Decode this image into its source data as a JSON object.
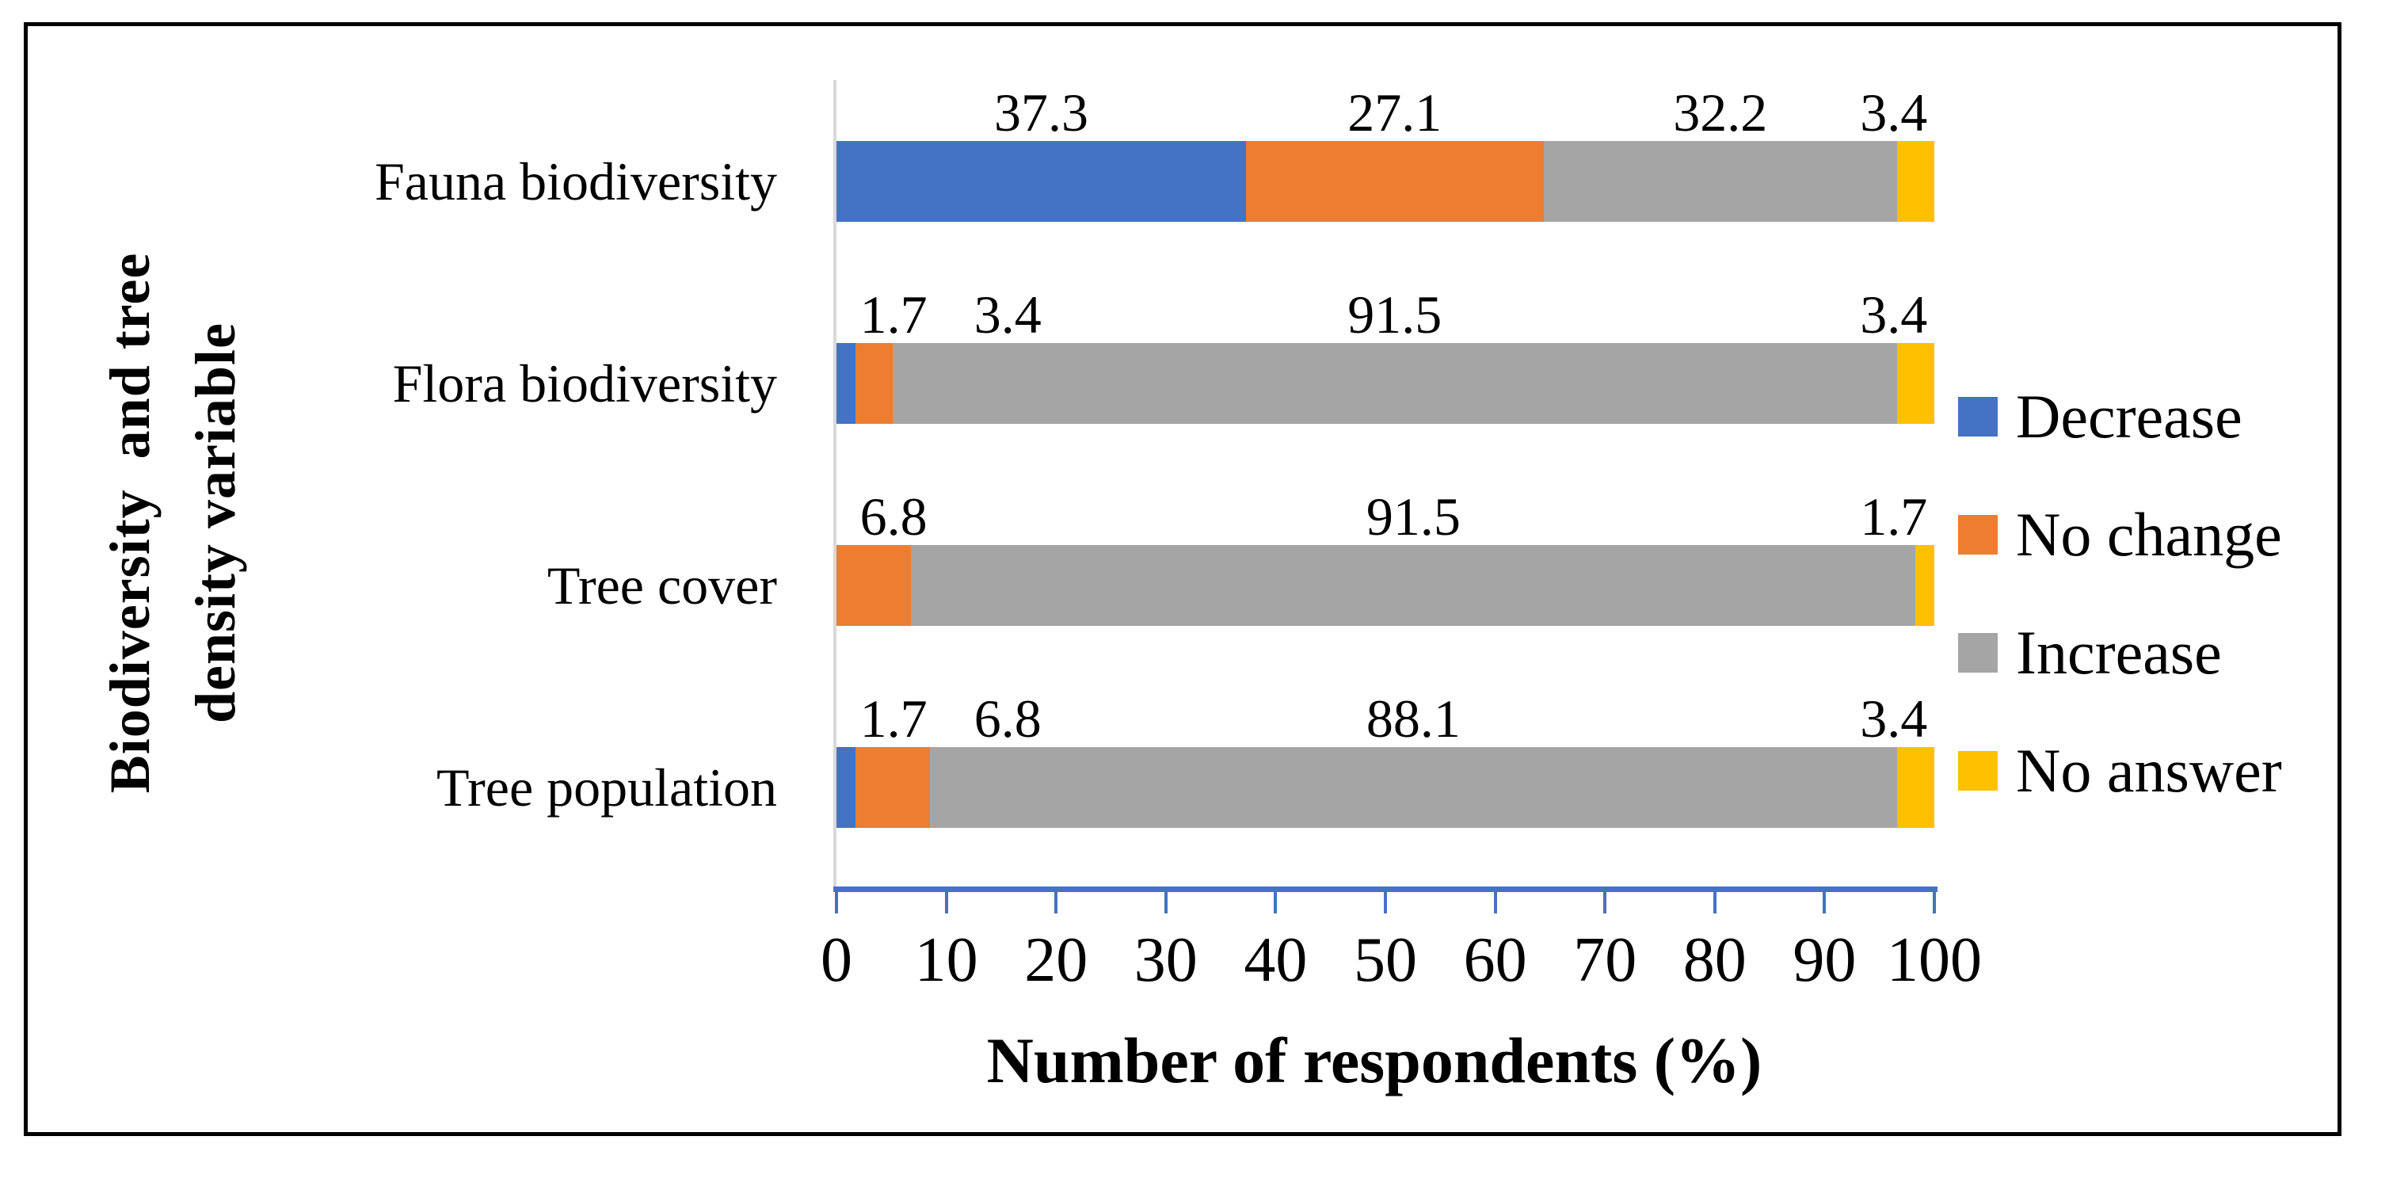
{
  "figure": {
    "background": "#FFFFFF",
    "border_color": "#000000"
  },
  "chart_data": {
    "type": "bar",
    "orientation": "horizontal",
    "stacked": true,
    "xlabel": "Number of respondents (%)",
    "ylabel_lines": [
      "Biodiversity  and tree",
      "density variable"
    ],
    "xlim": [
      0,
      100
    ],
    "xticks": [
      0,
      10,
      20,
      30,
      40,
      50,
      60,
      70,
      80,
      90,
      100
    ],
    "grid": false,
    "legend_position": "right",
    "categories": [
      "Fauna biodiversity",
      "Flora biodiversity",
      "Tree cover",
      "Tree population"
    ],
    "series": [
      {
        "name": "Decrease",
        "color": "#4472C4",
        "values": [
          37.3,
          1.7,
          0,
          1.7
        ]
      },
      {
        "name": "No change",
        "color": "#ED7D31",
        "values": [
          27.1,
          3.4,
          6.8,
          6.8
        ]
      },
      {
        "name": "Increase",
        "color": "#A5A5A5",
        "values": [
          32.2,
          91.5,
          91.5,
          88.1
        ]
      },
      {
        "name": "No answer",
        "color": "#FFC000",
        "values": [
          3.4,
          3.4,
          1.7,
          3.4
        ]
      }
    ],
    "data_label_decimals": 1,
    "axis_color": "#4472C4",
    "category_axis_line_color": "#D9D9D9"
  }
}
